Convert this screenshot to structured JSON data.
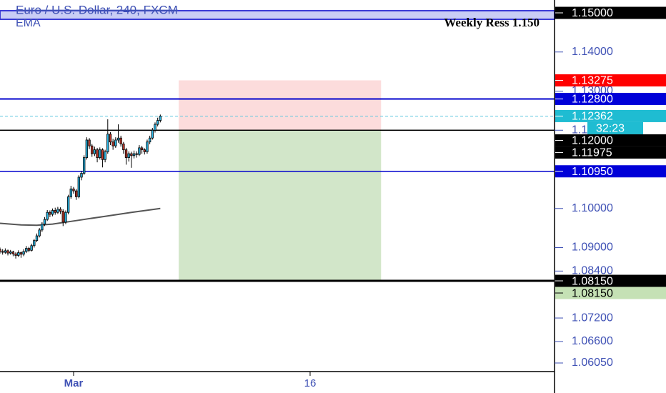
{
  "chart_data": {
    "type": "candlestick",
    "title": "Euro / U.S. Dollar, 240, FXCM",
    "indicator": "EMA",
    "annotation": "Weekly Ress 1.150",
    "countdown": "32:23",
    "xlim": [
      0,
      211
    ],
    "xticks": [
      {
        "value": 28,
        "label": "Mar"
      },
      {
        "value": 118,
        "label": "16"
      }
    ],
    "ylim": [
      1.05831,
      1.15329
    ],
    "yticks": [
      {
        "value": 1.14,
        "label": "1.14000"
      },
      {
        "value": 1.13,
        "label": "1.13000"
      },
      {
        "value": 1.12,
        "label": "1.12000"
      },
      {
        "value": 1.1,
        "label": "1.10000"
      },
      {
        "value": 1.09,
        "label": "1.09000"
      },
      {
        "value": 1.084,
        "label": "1.08400"
      },
      {
        "value": 1.072,
        "label": "1.07200"
      },
      {
        "value": 1.066,
        "label": "1.06600"
      },
      {
        "value": 1.0605,
        "label": "1.06050"
      }
    ],
    "up_color": "#29b6e6",
    "down_color": "#c0392b",
    "candles": [
      [
        1.0895,
        1.09,
        1.0885,
        1.089
      ],
      [
        1.089,
        1.0896,
        1.0882,
        1.0888
      ],
      [
        1.0888,
        1.0898,
        1.0884,
        1.0892
      ],
      [
        1.0892,
        1.0895,
        1.088,
        1.0886
      ],
      [
        1.0886,
        1.0894,
        1.0882,
        1.0889
      ],
      [
        1.0889,
        1.0892,
        1.0878,
        1.0884
      ],
      [
        1.0884,
        1.0888,
        1.0872,
        1.088
      ],
      [
        1.088,
        1.0893,
        1.0876,
        1.0887
      ],
      [
        1.0887,
        1.089,
        1.0874,
        1.0883
      ],
      [
        1.0883,
        1.0896,
        1.0878,
        1.089
      ],
      [
        1.089,
        1.0904,
        1.0886,
        1.0898
      ],
      [
        1.0898,
        1.0902,
        1.0888,
        1.0893
      ],
      [
        1.0893,
        1.091,
        1.089,
        1.0905
      ],
      [
        1.0905,
        1.0922,
        1.09,
        1.0918
      ],
      [
        1.0918,
        1.0936,
        1.0914,
        1.093
      ],
      [
        1.093,
        1.095,
        1.0926,
        1.0945
      ],
      [
        1.0945,
        1.0965,
        1.094,
        1.096
      ],
      [
        1.096,
        1.0978,
        1.0955,
        1.0972
      ],
      [
        1.0972,
        1.0996,
        1.0968,
        1.099
      ],
      [
        1.099,
        1.0995,
        1.0978,
        1.0985
      ],
      [
        1.0985,
        1.1,
        1.098,
        1.0995
      ],
      [
        1.0995,
        1.1002,
        1.0984,
        1.099
      ],
      [
        1.099,
        1.1004,
        1.0986,
        1.0998
      ],
      [
        1.0998,
        1.1003,
        1.0986,
        1.0993
      ],
      [
        1.0993,
        1.0998,
        1.0955,
        1.0965
      ],
      [
        1.0965,
        1.0995,
        1.096,
        1.099
      ],
      [
        1.099,
        1.1035,
        1.0985,
        1.103
      ],
      [
        1.103,
        1.1058,
        1.1025,
        1.105
      ],
      [
        1.105,
        1.1055,
        1.1038,
        1.1045
      ],
      [
        1.1045,
        1.105,
        1.1022,
        1.103
      ],
      [
        1.103,
        1.1085,
        1.1026,
        1.108
      ],
      [
        1.108,
        1.1096,
        1.1072,
        1.109
      ],
      [
        1.109,
        1.1136,
        1.1086,
        1.113
      ],
      [
        1.113,
        1.1182,
        1.1125,
        1.1175
      ],
      [
        1.1175,
        1.118,
        1.1152,
        1.116
      ],
      [
        1.116,
        1.1165,
        1.1132,
        1.114
      ],
      [
        1.114,
        1.1158,
        1.1134,
        1.115
      ],
      [
        1.115,
        1.1155,
        1.1118,
        1.113
      ],
      [
        1.113,
        1.1156,
        1.1125,
        1.115
      ],
      [
        1.115,
        1.1154,
        1.1105,
        1.1125
      ],
      [
        1.1125,
        1.115,
        1.1118,
        1.1145
      ],
      [
        1.1145,
        1.1228,
        1.114,
        1.119
      ],
      [
        1.119,
        1.1195,
        1.1162,
        1.117
      ],
      [
        1.117,
        1.1178,
        1.115,
        1.116
      ],
      [
        1.116,
        1.1182,
        1.1155,
        1.1175
      ],
      [
        1.1175,
        1.1215,
        1.1168,
        1.118
      ],
      [
        1.118,
        1.1186,
        1.1158,
        1.1165
      ],
      [
        1.1165,
        1.117,
        1.114,
        1.115
      ],
      [
        1.115,
        1.1155,
        1.1112,
        1.113
      ],
      [
        1.113,
        1.1146,
        1.112,
        1.114
      ],
      [
        1.114,
        1.1145,
        1.1104,
        1.1135
      ],
      [
        1.1135,
        1.1148,
        1.1128,
        1.114
      ],
      [
        1.114,
        1.1146,
        1.113,
        1.1138
      ],
      [
        1.1138,
        1.1162,
        1.1134,
        1.1155
      ],
      [
        1.1155,
        1.116,
        1.114,
        1.115
      ],
      [
        1.115,
        1.1154,
        1.1138,
        1.1145
      ],
      [
        1.1145,
        1.1176,
        1.114,
        1.117
      ],
      [
        1.117,
        1.1186,
        1.1164,
        1.118
      ],
      [
        1.118,
        1.1206,
        1.1176,
        1.12
      ],
      [
        1.12,
        1.122,
        1.1194,
        1.1215
      ],
      [
        1.1215,
        1.1232,
        1.121,
        1.1225
      ],
      [
        1.1225,
        1.124,
        1.122,
        1.1236
      ]
    ],
    "ema": {
      "color": "#555555",
      "x": [
        0,
        8,
        14,
        20,
        30,
        40,
        50,
        61
      ],
      "values": [
        1.0962,
        1.0958,
        1.0957,
        1.096,
        1.097,
        1.098,
        1.099,
        1.1
      ]
    },
    "zone": {
      "ylim": [
        1.14836,
        1.15055
      ],
      "color": "#3b3bd6",
      "fill": "#c9cdf5"
    },
    "hlines": [
      {
        "value": 1.128,
        "color": "#0000cc",
        "width": 2,
        "dashed": false
      },
      {
        "value": 1.12,
        "color": "#000000",
        "width": 1.5,
        "dashed": false
      },
      {
        "value": 1.1095,
        "color": "#0000cc",
        "width": 1.5,
        "dashed": false
      },
      {
        "value": 1.0815,
        "color": "#000000",
        "width": 3,
        "dashed": false
      },
      {
        "value": 1.12362,
        "color": "#5fc8e0",
        "width": 1,
        "dashed": true
      }
    ],
    "position": {
      "x": [
        68,
        145
      ],
      "entry": 1.12,
      "stop": 1.13275,
      "target": 1.0815,
      "stop_color": "#fcdcdc",
      "target_color": "#d2e6c9"
    },
    "price_labels": [
      {
        "value": 1.15,
        "label": "1.15000",
        "color": "#000000",
        "text_color": "#ffffff"
      },
      {
        "value": 1.13275,
        "label": "1.13275",
        "color": "#ff0000",
        "text_color": "#ffffff"
      },
      {
        "value": 1.128,
        "label": "1.12800",
        "color": "#0000d8",
        "text_color": "#ffffff"
      },
      {
        "value": 1.12362,
        "label": "1.12362",
        "color": "#1fbcd2",
        "text_color": "#ffffff"
      },
      {
        "value": 1.12,
        "label": "1.12000",
        "color": "#000000",
        "text_color": "#ffffff"
      },
      {
        "value": 1.11975,
        "label": "1.11975",
        "color": "#000000",
        "text_color": "#ffffff"
      },
      {
        "value": 1.1095,
        "label": "1.10950",
        "color": "#0000d8",
        "text_color": "#ffffff"
      },
      {
        "value": 1.0815,
        "label": "1.08150",
        "color": "#000000",
        "text_color": "#ffffff"
      },
      {
        "value": 1.0815,
        "label": "1.08150",
        "color": "#c5e1b5",
        "text_color": "#000000"
      }
    ]
  }
}
